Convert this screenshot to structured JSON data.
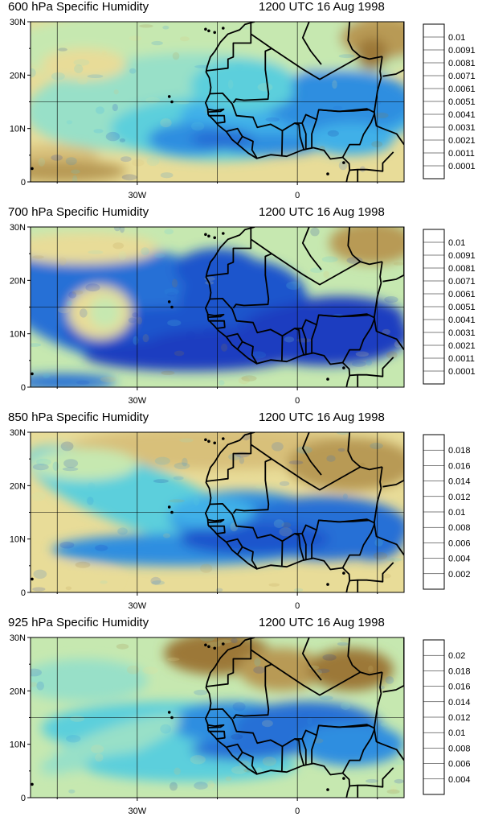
{
  "panels": [
    {
      "title": "600 hPa Specific Humidity",
      "time": "1200 UTC 16 Aug 1998",
      "colorbar_labels": [
        "0.01",
        "0.0091",
        "0.0081",
        "0.0071",
        "0.0061",
        "0.0051",
        "0.0041",
        "0.0031",
        "0.0021",
        "0.0011",
        "0.0001"
      ],
      "colorbar_min": 0.0001,
      "colorbar_max": 0.01
    },
    {
      "title": "700 hPa Specific Humidity",
      "time": "1200 UTC 16 Aug 1998",
      "colorbar_labels": [
        "0.01",
        "0.0091",
        "0.0081",
        "0.0071",
        "0.0061",
        "0.0051",
        "0.0041",
        "0.0031",
        "0.0021",
        "0.0011",
        "0.0001"
      ],
      "colorbar_min": 0.0001,
      "colorbar_max": 0.01
    },
    {
      "title": "850 hPa Specific Humidity",
      "time": "1200 UTC 16 Aug 1998",
      "colorbar_labels": [
        "0.018",
        "0.016",
        "0.014",
        "0.012",
        "0.01",
        "0.008",
        "0.006",
        "0.004",
        "0.002"
      ],
      "colorbar_min": 0.002,
      "colorbar_max": 0.018
    },
    {
      "title": "925 hPa Specific Humidity",
      "time": "1200 UTC 16 Aug 1998",
      "colorbar_labels": [
        "0.02",
        "0.018",
        "0.016",
        "0.014",
        "0.012",
        "0.01",
        "0.008",
        "0.006",
        "0.004"
      ],
      "colorbar_min": 0.004,
      "colorbar_max": 0.02
    }
  ],
  "axes": {
    "y_ticks": [
      "30N",
      "20N",
      "10N",
      "0"
    ],
    "x_ticks": [
      "30W",
      "0"
    ],
    "lon_range": [
      -50,
      20
    ],
    "lat_range": [
      0,
      30
    ]
  },
  "colors": {
    "scale": [
      "#9c7838",
      "#b89a55",
      "#d8c07a",
      "#e8dc98",
      "#c6e8b0",
      "#98e0c8",
      "#5ccfdc",
      "#3fb0e8",
      "#2f8ee0",
      "#2570d6",
      "#1f54cc",
      "#1a3ec0",
      "#16309a"
    ]
  }
}
